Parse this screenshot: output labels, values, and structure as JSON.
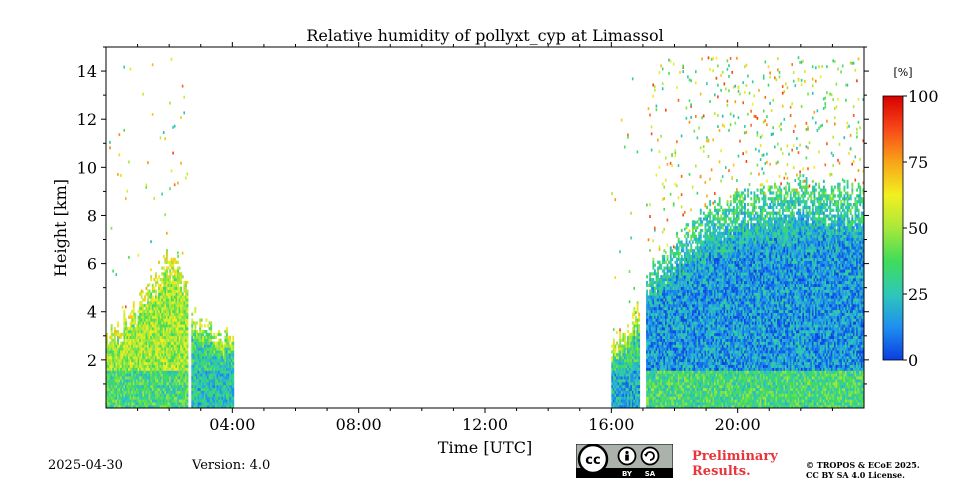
{
  "chart_data": {
    "type": "heatmap",
    "title": "Relative humidity of pollyxt_cyp at Limassol",
    "xlabel": "Time [UTC]",
    "ylabel": "Height [km]",
    "xlim": [
      0,
      24
    ],
    "ylim": [
      0,
      15
    ],
    "x_ticks": [
      {
        "value": 4,
        "label": "04:00"
      },
      {
        "value": 8,
        "label": "08:00"
      },
      {
        "value": 12,
        "label": "12:00"
      },
      {
        "value": 16,
        "label": "16:00"
      },
      {
        "value": 20,
        "label": "20:00"
      }
    ],
    "y_ticks": [
      {
        "value": 2,
        "label": "2"
      },
      {
        "value": 4,
        "label": "4"
      },
      {
        "value": 6,
        "label": "6"
      },
      {
        "value": 8,
        "label": "8"
      },
      {
        "value": 10,
        "label": "10"
      },
      {
        "value": 12,
        "label": "12"
      },
      {
        "value": 14,
        "label": "14"
      }
    ],
    "colorbar": {
      "unit": "[%]",
      "range": [
        0,
        100
      ],
      "ticks": [
        {
          "value": 0,
          "label": "0"
        },
        {
          "value": 25,
          "label": "25"
        },
        {
          "value": 50,
          "label": "50"
        },
        {
          "value": 75,
          "label": "75"
        },
        {
          "value": 100,
          "label": "100"
        }
      ],
      "colors": [
        "#0a3ee0",
        "#1f8ff0",
        "#2ec8b8",
        "#3fdc5a",
        "#a8e83a",
        "#f2f020",
        "#f8a418",
        "#f84818",
        "#d80000"
      ]
    },
    "data_segments": [
      {
        "t_start": 0.0,
        "t_end": 2.55,
        "top_km": [
          3.0,
          3.4,
          4.2,
          5.0,
          5.8,
          6.6,
          5.2
        ],
        "surface_rh": 35,
        "mid_rh": 50,
        "upper_rh": 45
      },
      {
        "t_start": 2.7,
        "t_end": 4.0,
        "top_km": [
          3.9,
          3.5,
          3.0,
          2.8
        ],
        "surface_rh": 25,
        "mid_rh": 30,
        "upper_rh": 40
      },
      {
        "t_start": 16.0,
        "t_end": 16.9,
        "top_km": [
          2.5,
          3.2,
          4.5
        ],
        "surface_rh": 20,
        "mid_rh": 30,
        "upper_rh": 45
      },
      {
        "t_start": 17.1,
        "t_end": 24.0,
        "top_km": [
          5.5,
          7.0,
          8.3,
          8.7,
          9.0,
          9.3,
          9.0,
          9.0
        ],
        "surface_rh": 35,
        "mid_rh": 15,
        "upper_rh": 20
      }
    ],
    "gaps": [
      [
        2.55,
        2.7
      ],
      [
        16.9,
        17.1
      ]
    ]
  },
  "footer": {
    "date": "2025-04-30",
    "version": "Version: 4.0",
    "preliminary_line1": "Preliminary",
    "preliminary_line2": "Results.",
    "copyright_line1": "© TROPOS & ECoE 2025.",
    "copyright_line2": "CC BY SA 4.0 License.",
    "license_badge": {
      "cc": "cc",
      "by": "BY",
      "sa": "SA"
    }
  },
  "colors": {
    "preliminary": "#e8343a"
  }
}
